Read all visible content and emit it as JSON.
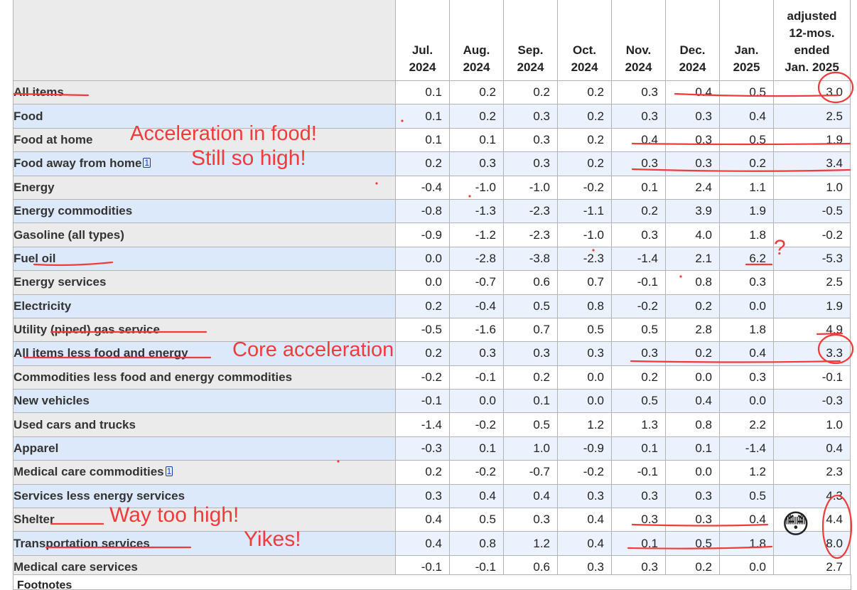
{
  "table": {
    "columns": [
      {
        "line1": "Jul.",
        "line2": "2024"
      },
      {
        "line1": "Aug.",
        "line2": "2024"
      },
      {
        "line1": "Sep.",
        "line2": "2024"
      },
      {
        "line1": "Oct.",
        "line2": "2024"
      },
      {
        "line1": "Nov.",
        "line2": "2024"
      },
      {
        "line1": "Dec.",
        "line2": "2024"
      },
      {
        "line1": "Jan.",
        "line2": "2025"
      }
    ],
    "last_column": {
      "line1": "adjusted",
      "line2": "12-mos.",
      "line3": "ended",
      "line4": "Jan. 2025"
    },
    "rows": [
      {
        "label": "All items",
        "values": [
          "0.1",
          "0.2",
          "0.2",
          "0.2",
          "0.3",
          "0.4",
          "0.5"
        ],
        "annual": "3.0"
      },
      {
        "label": "Food",
        "values": [
          "0.1",
          "0.2",
          "0.3",
          "0.2",
          "0.3",
          "0.3",
          "0.4"
        ],
        "annual": "2.5"
      },
      {
        "label": "Food at home",
        "values": [
          "0.1",
          "0.1",
          "0.3",
          "0.2",
          "0.4",
          "0.3",
          "0.5"
        ],
        "annual": "1.9"
      },
      {
        "label": "Food away from home",
        "footnote": "1",
        "values": [
          "0.2",
          "0.3",
          "0.3",
          "0.2",
          "0.3",
          "0.3",
          "0.2"
        ],
        "annual": "3.4"
      },
      {
        "label": "Energy",
        "values": [
          "-0.4",
          "-1.0",
          "-1.0",
          "-0.2",
          "0.1",
          "2.4",
          "1.1"
        ],
        "annual": "1.0"
      },
      {
        "label": "Energy commodities",
        "values": [
          "-0.8",
          "-1.3",
          "-2.3",
          "-1.1",
          "0.2",
          "3.9",
          "1.9"
        ],
        "annual": "-0.5"
      },
      {
        "label": "Gasoline (all types)",
        "values": [
          "-0.9",
          "-1.2",
          "-2.3",
          "-1.0",
          "0.3",
          "4.0",
          "1.8"
        ],
        "annual": "-0.2"
      },
      {
        "label": "Fuel oil",
        "values": [
          "0.0",
          "-2.8",
          "-3.8",
          "-2.3",
          "-1.4",
          "2.1",
          "6.2"
        ],
        "annual": "-5.3"
      },
      {
        "label": "Energy services",
        "values": [
          "0.0",
          "-0.7",
          "0.6",
          "0.7",
          "-0.1",
          "0.8",
          "0.3"
        ],
        "annual": "2.5"
      },
      {
        "label": "Electricity",
        "values": [
          "0.2",
          "-0.4",
          "0.5",
          "0.8",
          "-0.2",
          "0.2",
          "0.0"
        ],
        "annual": "1.9"
      },
      {
        "label": "Utility (piped) gas service",
        "values": [
          "-0.5",
          "-1.6",
          "0.7",
          "0.5",
          "0.5",
          "2.8",
          "1.8"
        ],
        "annual": "4.9"
      },
      {
        "label": "All items less food and energy",
        "values": [
          "0.2",
          "0.3",
          "0.3",
          "0.3",
          "0.3",
          "0.2",
          "0.4"
        ],
        "annual": "3.3"
      },
      {
        "label": "Commodities less food and energy commodities",
        "values": [
          "-0.2",
          "-0.1",
          "0.2",
          "0.0",
          "0.2",
          "0.0",
          "0.3"
        ],
        "annual": "-0.1"
      },
      {
        "label": "New vehicles",
        "values": [
          "-0.1",
          "0.0",
          "0.1",
          "0.0",
          "0.5",
          "0.4",
          "0.0"
        ],
        "annual": "-0.3"
      },
      {
        "label": "Used cars and trucks",
        "values": [
          "-1.4",
          "-0.2",
          "0.5",
          "1.2",
          "1.3",
          "0.8",
          "2.2"
        ],
        "annual": "1.0"
      },
      {
        "label": "Apparel",
        "values": [
          "-0.3",
          "0.1",
          "1.0",
          "-0.9",
          "0.1",
          "0.1",
          "-1.4"
        ],
        "annual": "0.4"
      },
      {
        "label": "Medical care commodities",
        "footnote": "1",
        "values": [
          "0.2",
          "-0.2",
          "-0.7",
          "-0.2",
          "-0.1",
          "0.0",
          "1.2"
        ],
        "annual": "2.3"
      },
      {
        "label": "Services less energy services",
        "values": [
          "0.3",
          "0.4",
          "0.4",
          "0.3",
          "0.3",
          "0.3",
          "0.5"
        ],
        "annual": "4.3"
      },
      {
        "label": "Shelter",
        "values": [
          "0.4",
          "0.5",
          "0.3",
          "0.4",
          "0.3",
          "0.3",
          "0.4"
        ],
        "annual": "4.4"
      },
      {
        "label": "Transportation services",
        "values": [
          "0.4",
          "0.8",
          "1.2",
          "0.4",
          "0.1",
          "0.5",
          "1.8"
        ],
        "annual": "8.0"
      },
      {
        "label": "Medical care services",
        "values": [
          "-0.1",
          "-0.1",
          "0.6",
          "0.3",
          "0.3",
          "0.2",
          "0.0"
        ],
        "annual": "2.7"
      }
    ]
  },
  "footer": {
    "label": "Footnotes"
  },
  "annotations": {
    "food_at_home": "Acceleration in food!",
    "food_away": "Still so high!",
    "core": "Core acceleration",
    "shelter": "Way too high!",
    "transport": "Yikes!",
    "question": "?",
    "emoji": "😳",
    "ink_color": "#ef3b3b"
  }
}
